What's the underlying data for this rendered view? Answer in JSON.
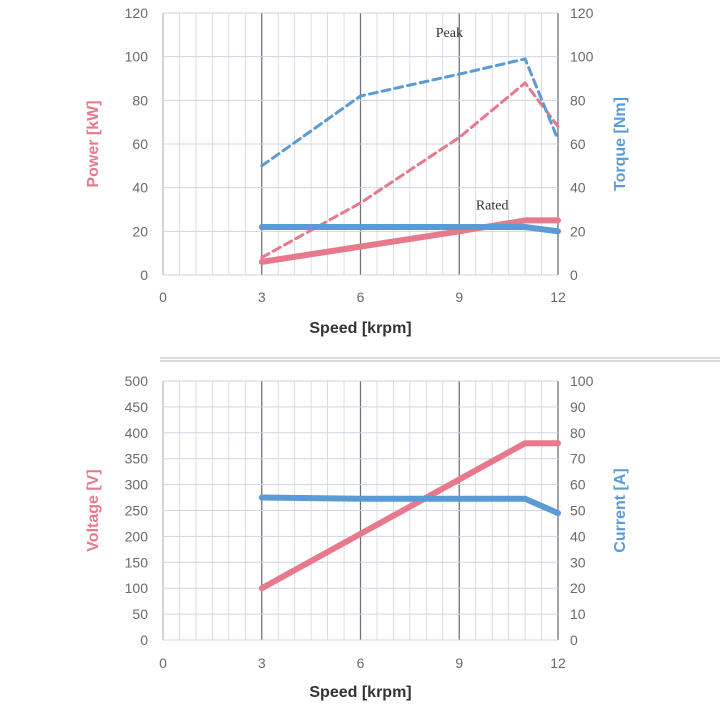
{
  "colors": {
    "power": "#e8788c",
    "torque": "#5b9bd5",
    "voltage": "#e8788c",
    "current": "#5b9bd5",
    "grid_minor": "#d0d5e0",
    "grid_major": "#6d7180",
    "separator": "#b0b4bc"
  },
  "chart_data": [
    {
      "type": "line",
      "xlabel": "Speed [krpm]",
      "ylabel_left": "Power [kW]",
      "ylabel_right": "Torque [Nm]",
      "xlim": [
        0,
        12
      ],
      "xticks": [
        "0",
        "3",
        "6",
        "9",
        "12"
      ],
      "ylim_left": [
        0,
        120
      ],
      "ylim_right": [
        0,
        120
      ],
      "yticks_left": [
        "0",
        "20",
        "40",
        "60",
        "80",
        "100",
        "120"
      ],
      "yticks_right": [
        "0",
        "20",
        "40",
        "60",
        "80",
        "100",
        "120"
      ],
      "grid": true,
      "annotations": [
        {
          "text": "Peak",
          "x": 8.7,
          "y": 109
        },
        {
          "text": "Rated",
          "x": 10.0,
          "y": 30
        }
      ],
      "series": [
        {
          "axis": "left",
          "style": "dashed",
          "color": "#e8788c",
          "x": [
            3,
            6,
            9,
            11,
            12
          ],
          "y": [
            8,
            33,
            63,
            88,
            68
          ]
        },
        {
          "axis": "right",
          "style": "dashed",
          "color": "#5b9bd5",
          "x": [
            3,
            6,
            9,
            11,
            12
          ],
          "y": [
            50,
            82,
            92,
            99,
            62
          ]
        },
        {
          "axis": "left",
          "style": "solid",
          "color": "#e8788c",
          "x": [
            3,
            6,
            9,
            11,
            12
          ],
          "y": [
            6,
            13,
            20,
            25,
            25
          ]
        },
        {
          "axis": "right",
          "style": "solid",
          "color": "#5b9bd5",
          "x": [
            3,
            6,
            9,
            11,
            12
          ],
          "y": [
            22,
            22,
            22,
            22,
            20
          ]
        }
      ]
    },
    {
      "type": "line",
      "xlabel": "Speed [krpm]",
      "ylabel_left": "Voltage [V]",
      "ylabel_right": "Current [A]",
      "xlim": [
        0,
        12
      ],
      "xticks": [
        "0",
        "3",
        "6",
        "9",
        "12"
      ],
      "ylim_left": [
        0,
        500
      ],
      "ylim_right": [
        0,
        100
      ],
      "yticks_left": [
        "0",
        "50",
        "100",
        "150",
        "200",
        "250",
        "300",
        "350",
        "400",
        "450",
        "500"
      ],
      "yticks_right": [
        "0",
        "10",
        "20",
        "30",
        "40",
        "50",
        "60",
        "70",
        "80",
        "90",
        "100"
      ],
      "grid": true,
      "annotations": [],
      "series": [
        {
          "axis": "left",
          "style": "solid",
          "color": "#e8788c",
          "x": [
            3,
            11,
            12
          ],
          "y": [
            100,
            380,
            380
          ]
        },
        {
          "axis": "right",
          "style": "solid",
          "color": "#5b9bd5",
          "x": [
            3,
            6,
            11,
            12
          ],
          "y": [
            55,
            54.5,
            54.5,
            49
          ]
        }
      ]
    }
  ]
}
